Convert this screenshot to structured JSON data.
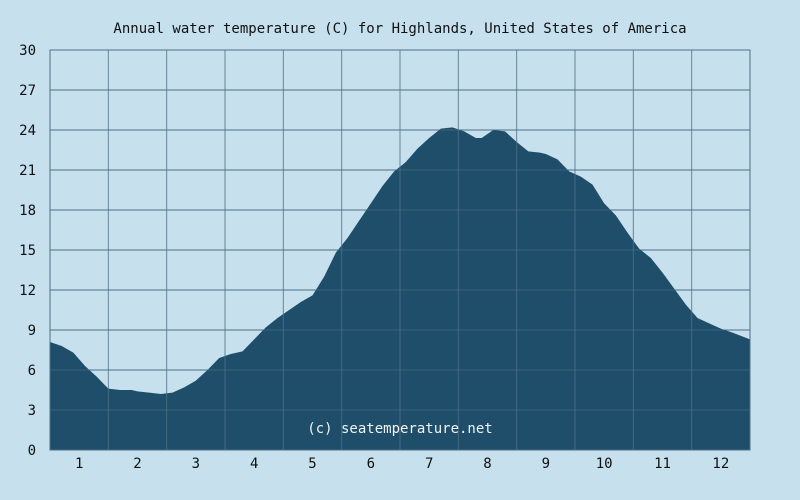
{
  "chart_data": {
    "type": "area",
    "title": "Annual water temperature (C) for Highlands, United States of America",
    "watermark": "(c) seatemperature.net",
    "xlabel": "",
    "ylabel": "",
    "x_ticks": [
      "1",
      "2",
      "3",
      "4",
      "5",
      "6",
      "7",
      "8",
      "9",
      "10",
      "11",
      "12"
    ],
    "y_ticks": [
      "0",
      "3",
      "6",
      "9",
      "12",
      "15",
      "18",
      "21",
      "24",
      "27",
      "30"
    ],
    "xlim": [
      0.5,
      12.5
    ],
    "ylim": [
      0,
      30
    ],
    "grid": true,
    "colors": {
      "background": "#c6e0ee",
      "area": "#1f4e6a",
      "grid": "#4f6f86"
    },
    "x": [
      0.5,
      0.7,
      0.9,
      1.1,
      1.3,
      1.5,
      1.7,
      1.9,
      2.0,
      2.2,
      2.4,
      2.6,
      2.8,
      3.0,
      3.2,
      3.4,
      3.6,
      3.8,
      4.0,
      4.2,
      4.4,
      4.6,
      4.8,
      5.0,
      5.2,
      5.4,
      5.6,
      5.8,
      6.0,
      6.2,
      6.4,
      6.6,
      6.8,
      7.0,
      7.2,
      7.4,
      7.6,
      7.8,
      7.9,
      8.1,
      8.3,
      8.5,
      8.7,
      8.9,
      9.0,
      9.2,
      9.4,
      9.6,
      9.8,
      10.0,
      10.2,
      10.4,
      10.6,
      10.8,
      11.0,
      11.2,
      11.4,
      11.6,
      11.8,
      12.0,
      12.2,
      12.5
    ],
    "values": [
      8.1,
      7.8,
      7.3,
      6.3,
      5.5,
      4.6,
      4.5,
      4.5,
      4.4,
      4.3,
      4.2,
      4.3,
      4.7,
      5.2,
      6.0,
      6.9,
      7.2,
      7.4,
      8.3,
      9.2,
      9.9,
      10.5,
      11.1,
      11.6,
      13.0,
      14.8,
      15.9,
      17.2,
      18.5,
      19.8,
      20.9,
      21.6,
      22.6,
      23.4,
      24.1,
      24.2,
      23.9,
      23.4,
      23.4,
      24.0,
      23.9,
      23.1,
      22.4,
      22.3,
      22.2,
      21.8,
      20.9,
      20.5,
      19.9,
      18.5,
      17.6,
      16.3,
      15.1,
      14.4,
      13.3,
      12.1,
      10.9,
      9.9,
      9.5,
      9.1,
      8.8,
      8.3
    ]
  }
}
